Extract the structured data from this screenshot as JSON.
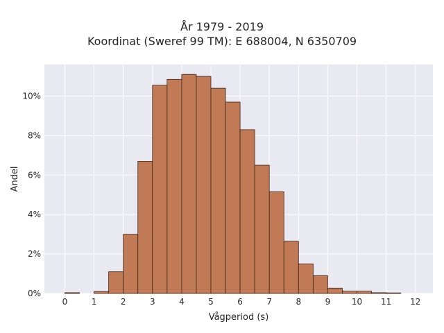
{
  "chart_data": {
    "type": "bar",
    "title_line1": "År 1979 - 2019",
    "title_line2": "Koordinat (Sweref 99 TM): E 688004, N 6350709",
    "xlabel": "Vågperiod (s)",
    "ylabel": "Andel",
    "xlim": [
      -0.7,
      12.6
    ],
    "ylim": [
      0,
      11.6
    ],
    "x_ticks": [
      0,
      1,
      2,
      3,
      4,
      5,
      6,
      7,
      8,
      9,
      10,
      11,
      12
    ],
    "y_ticks": [
      0,
      2,
      4,
      6,
      8,
      10
    ],
    "y_tick_suffix": "%",
    "grid": true,
    "bar_color": "#c07a55",
    "edge_color": "#3d2518",
    "background": "#e9e9f1",
    "bins": [
      {
        "x0": 0.0,
        "x1": 0.5,
        "value": 0.04
      },
      {
        "x0": 0.5,
        "x1": 1.0,
        "value": 0.0
      },
      {
        "x0": 1.0,
        "x1": 1.5,
        "value": 0.1
      },
      {
        "x0": 1.5,
        "x1": 2.0,
        "value": 1.1
      },
      {
        "x0": 2.0,
        "x1": 2.5,
        "value": 3.0
      },
      {
        "x0": 2.5,
        "x1": 3.0,
        "value": 6.7
      },
      {
        "x0": 3.0,
        "x1": 3.5,
        "value": 10.55
      },
      {
        "x0": 3.5,
        "x1": 4.0,
        "value": 10.85
      },
      {
        "x0": 4.0,
        "x1": 4.5,
        "value": 11.1
      },
      {
        "x0": 4.5,
        "x1": 5.0,
        "value": 11.0
      },
      {
        "x0": 5.0,
        "x1": 5.5,
        "value": 10.4
      },
      {
        "x0": 5.5,
        "x1": 6.0,
        "value": 9.7
      },
      {
        "x0": 6.0,
        "x1": 6.5,
        "value": 8.3
      },
      {
        "x0": 6.5,
        "x1": 7.0,
        "value": 6.5
      },
      {
        "x0": 7.0,
        "x1": 7.5,
        "value": 5.15
      },
      {
        "x0": 7.5,
        "x1": 8.0,
        "value": 2.65
      },
      {
        "x0": 8.0,
        "x1": 8.5,
        "value": 1.5
      },
      {
        "x0": 8.5,
        "x1": 9.0,
        "value": 0.9
      },
      {
        "x0": 9.0,
        "x1": 9.5,
        "value": 0.27
      },
      {
        "x0": 9.5,
        "x1": 10.0,
        "value": 0.12
      },
      {
        "x0": 10.0,
        "x1": 10.5,
        "value": 0.12
      },
      {
        "x0": 10.5,
        "x1": 11.0,
        "value": 0.04
      },
      {
        "x0": 11.0,
        "x1": 11.5,
        "value": 0.03
      },
      {
        "x0": 11.5,
        "x1": 12.0,
        "value": 0.0
      }
    ]
  }
}
